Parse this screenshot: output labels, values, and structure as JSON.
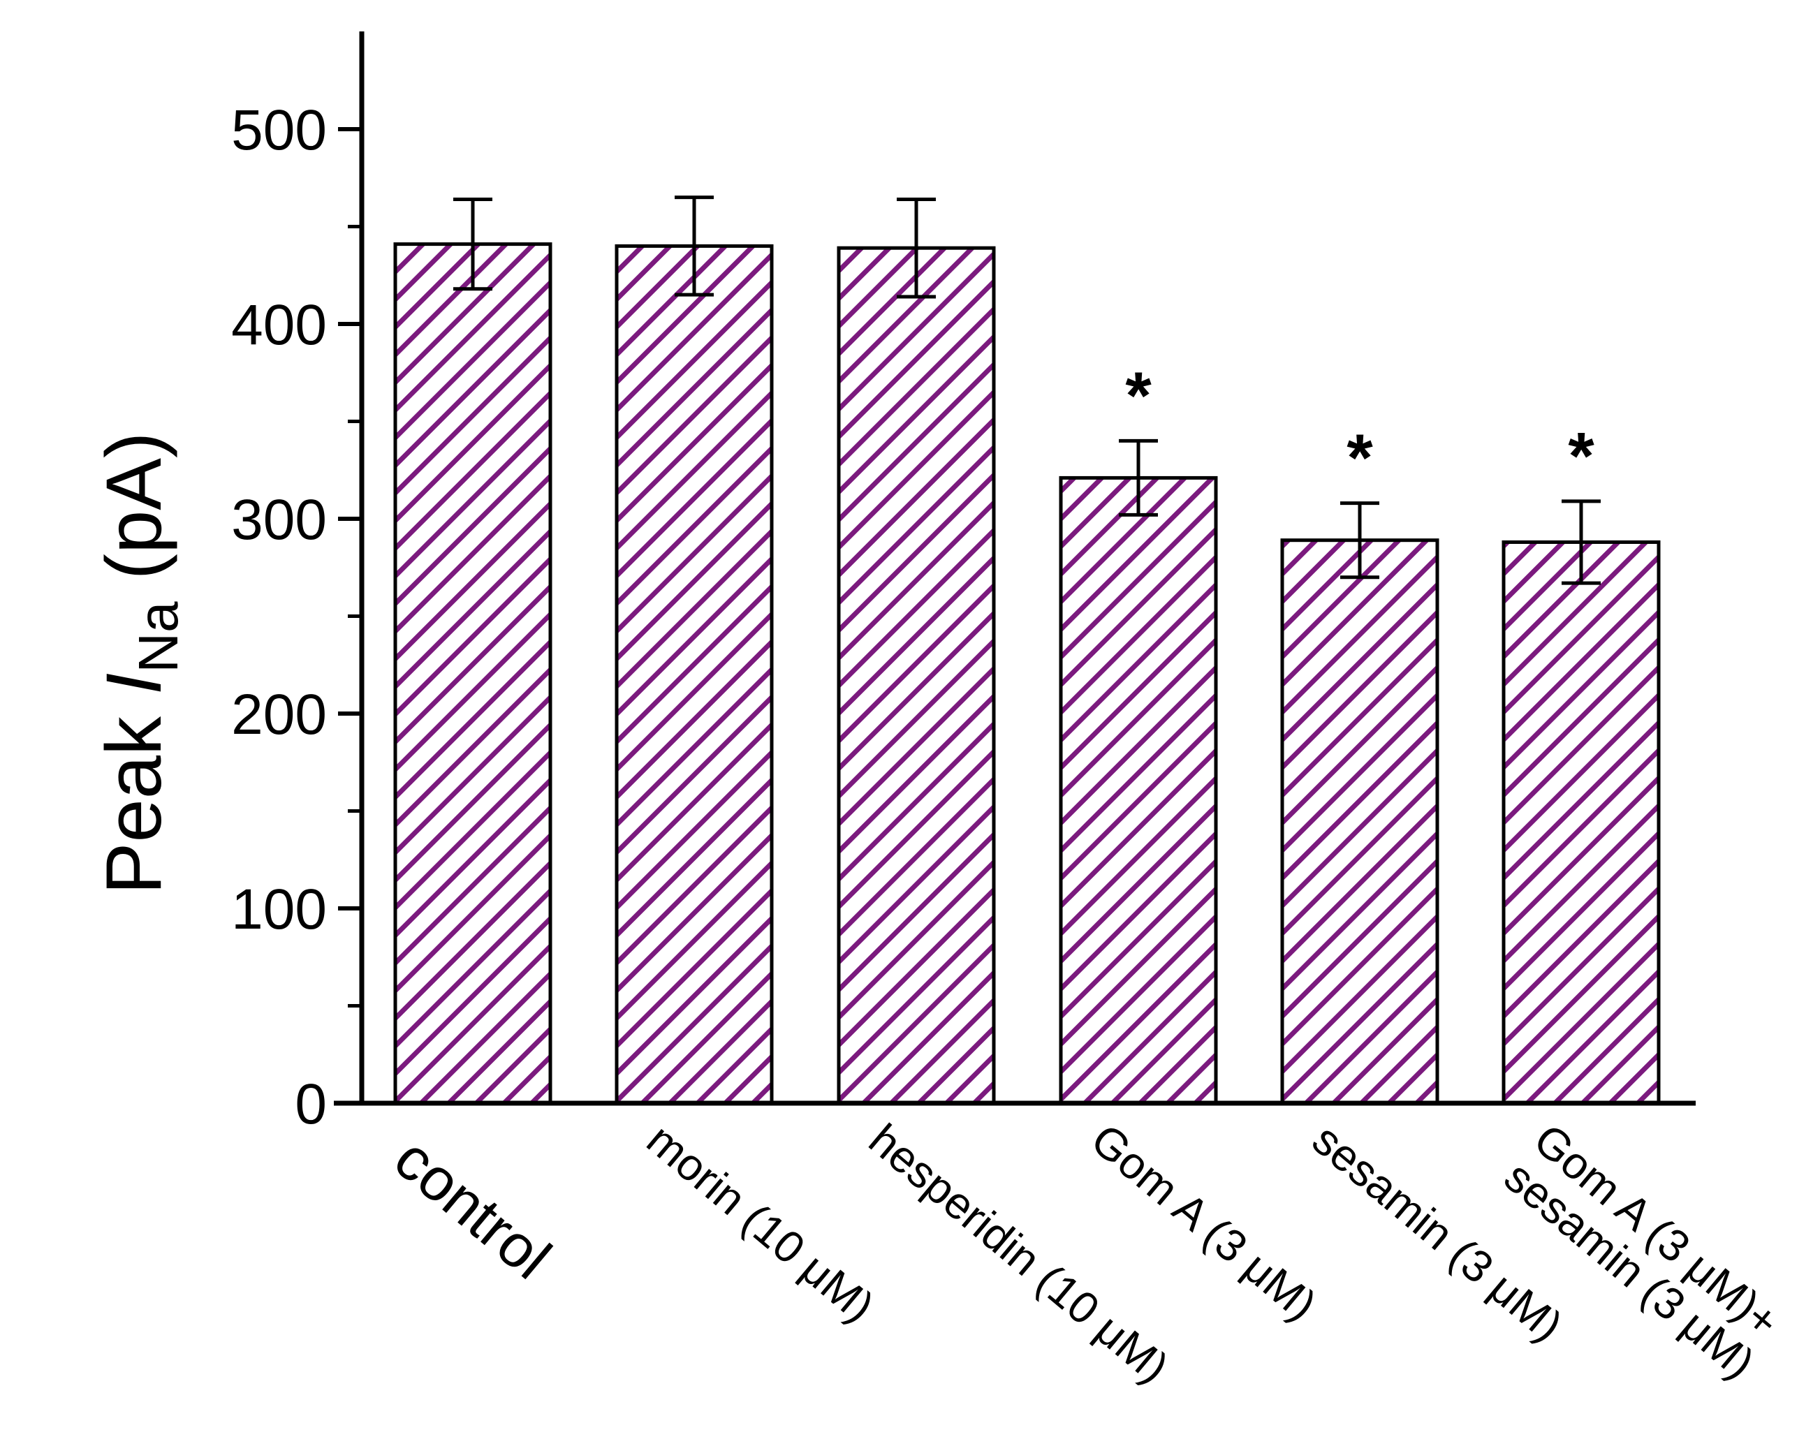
{
  "chart_data": {
    "type": "bar",
    "title": "",
    "xlabel": "",
    "ylabel": {
      "prefix": "Peak ",
      "symbol": "I",
      "subscript": "Na",
      "unit": " (pA)"
    },
    "ylim": [
      0,
      550
    ],
    "yticks": [
      0,
      100,
      200,
      300,
      400,
      500
    ],
    "categories": [
      [
        "control"
      ],
      [
        "morin (10 μM)"
      ],
      [
        "hesperidin (10 μM)"
      ],
      [
        "Gom A (3 μM)"
      ],
      [
        "sesamin (3 μM)"
      ],
      [
        "Gom A (3 μM)+",
        "sesamin (3 μM)"
      ]
    ],
    "values": [
      441,
      440,
      439,
      321,
      289,
      288
    ],
    "errors": [
      23,
      25,
      25,
      19,
      19,
      21
    ],
    "significance": [
      "",
      "",
      "",
      "*",
      "*",
      "*"
    ],
    "bar_fill": "hatched",
    "hatch_color": "#7b1a7e",
    "edge_color": "#000000",
    "grid": false,
    "legend": "none"
  }
}
